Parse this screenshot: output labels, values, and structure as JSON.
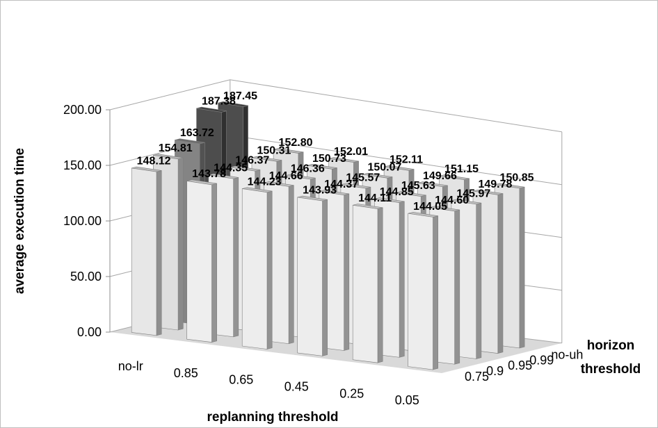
{
  "chart_data": {
    "type": "bar",
    "categories": [
      "no-lr",
      "0.85",
      "0.65",
      "0.45",
      "0.25",
      "0.05"
    ],
    "depth_categories": [
      "0.75",
      "0.9",
      "0.95",
      "0.99",
      "no-uh"
    ],
    "series": [
      {
        "name": "no-uh",
        "values": [
          187.45,
          152.8,
          152.01,
          152.11,
          151.15,
          150.85
        ]
      },
      {
        "name": "0.99",
        "values": [
          187.38,
          150.31,
          150.73,
          150.07,
          149.66,
          149.78
        ]
      },
      {
        "name": "0.95",
        "values": [
          163.72,
          146.37,
          146.36,
          145.57,
          145.63,
          145.97
        ]
      },
      {
        "name": "0.9",
        "values": [
          154.81,
          144.35,
          144.66,
          144.37,
          144.85,
          144.6
        ]
      },
      {
        "name": "0.75",
        "values": [
          148.12,
          143.78,
          144.23,
          143.93,
          144.11,
          144.05
        ]
      }
    ],
    "value_labels": [
      [
        "148.12",
        "143.78",
        "144.23",
        "143.93",
        "144.11",
        "144.05"
      ],
      [
        "154.81",
        "144.35",
        "144.66",
        "144.37",
        "144.85",
        "144.60"
      ],
      [
        "163.72",
        "146.37",
        "146.36",
        "145.57",
        "145.63",
        "145.97"
      ],
      [
        "187.38",
        "150.31",
        "150.73",
        "150.07",
        "149.66",
        "149.78"
      ],
      [
        "187.45",
        "152.80",
        "152.01",
        "152.11",
        "151.15",
        "150.85"
      ]
    ],
    "ylabel": "average execution time",
    "xlabel": "replanning threshold",
    "zlabel_lines": [
      "horizon",
      "threshold"
    ],
    "yticks": [
      "0.00",
      "50.00",
      "100.00",
      "150.00",
      "200.00"
    ],
    "ylim": [
      0,
      200
    ],
    "colors": {
      "light": "#f3f3f3",
      "dark": "#4d4d4d"
    },
    "grid": true
  }
}
